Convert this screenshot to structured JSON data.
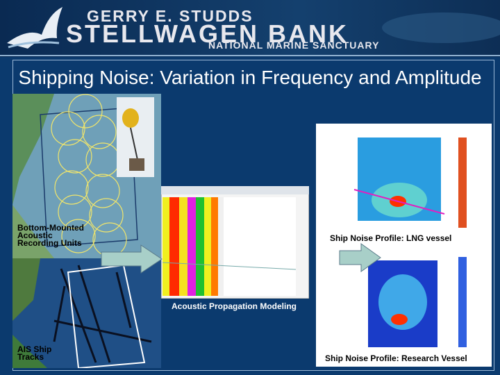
{
  "header": {
    "line1": "GERRY E. STUDDS",
    "line2": "STELLWAGEN BANK",
    "line3": "NATIONAL MARINE SANCTUARY"
  },
  "title": "Shipping Noise: Variation in Frequency and Amplitude",
  "labels": {
    "recorders": "Bottom-Mounted Acoustic Recording Units",
    "ais": "AIS Ship Tracks",
    "modeling": "Acoustic Propagation Modeling",
    "lng": "Ship Noise Profile: LNG vessel",
    "research": "Ship Noise Profile: Research Vessel"
  }
}
